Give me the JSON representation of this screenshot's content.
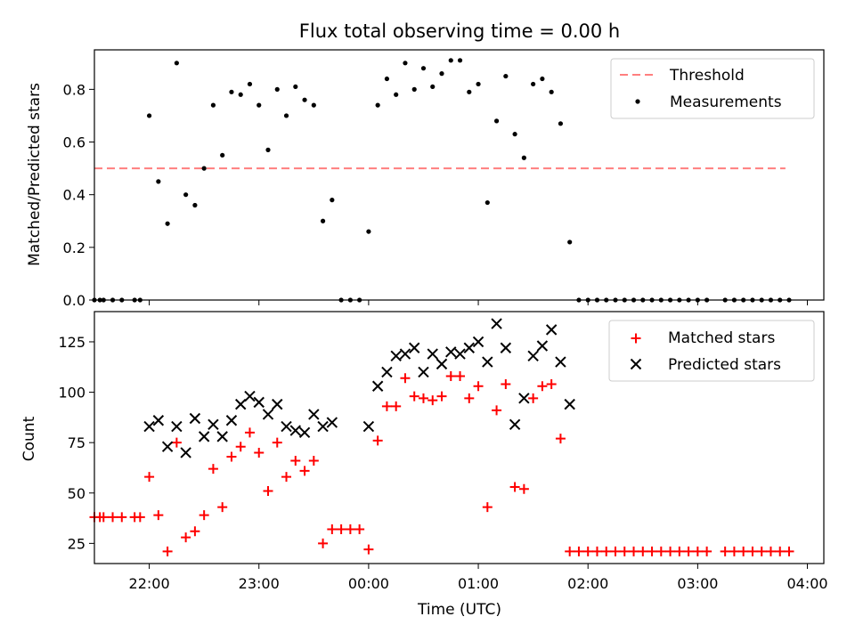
{
  "chart_data": [
    {
      "type": "scatter",
      "title": "Flux total observing time = 0.00 h",
      "xlabel": "",
      "ylabel": "Matched/Predicted stars",
      "xlim": [
        "21:30",
        "04:09"
      ],
      "ylim": [
        0,
        0.95
      ],
      "yticks": [
        0.0,
        0.2,
        0.4,
        0.6,
        0.8
      ],
      "yticklabels": [
        "0.0",
        "0.2",
        "0.4",
        "0.6",
        "0.8"
      ],
      "legend_position": "top-right",
      "threshold": {
        "name": "Threshold",
        "value": 0.5,
        "x_start": "21:30",
        "x_end": "03:48",
        "color": "#ff7f7f"
      },
      "series": [
        {
          "name": "Measurements",
          "color": "#000000",
          "marker": "dot",
          "points": [
            [
              "21:30",
              0
            ],
            [
              "21:33",
              0
            ],
            [
              "21:35",
              0
            ],
            [
              "21:40",
              0
            ],
            [
              "21:45",
              0
            ],
            [
              "21:52",
              0
            ],
            [
              "21:55",
              0
            ],
            [
              "22:00",
              0.7
            ],
            [
              "22:05",
              0.45
            ],
            [
              "22:10",
              0.29
            ],
            [
              "22:15",
              0.9
            ],
            [
              "22:20",
              0.4
            ],
            [
              "22:25",
              0.36
            ],
            [
              "22:30",
              0.5
            ],
            [
              "22:35",
              0.74
            ],
            [
              "22:40",
              0.55
            ],
            [
              "22:45",
              0.79
            ],
            [
              "22:50",
              0.78
            ],
            [
              "22:55",
              0.82
            ],
            [
              "23:00",
              0.74
            ],
            [
              "23:05",
              0.57
            ],
            [
              "23:10",
              0.8
            ],
            [
              "23:15",
              0.7
            ],
            [
              "23:20",
              0.81
            ],
            [
              "23:25",
              0.76
            ],
            [
              "23:30",
              0.74
            ],
            [
              "23:35",
              0.3
            ],
            [
              "23:40",
              0.38
            ],
            [
              "23:45",
              0
            ],
            [
              "23:50",
              0
            ],
            [
              "23:55",
              0
            ],
            [
              "00:00",
              0.26
            ],
            [
              "00:05",
              0.74
            ],
            [
              "00:10",
              0.84
            ],
            [
              "00:15",
              0.78
            ],
            [
              "00:20",
              0.9
            ],
            [
              "00:25",
              0.8
            ],
            [
              "00:30",
              0.88
            ],
            [
              "00:35",
              0.81
            ],
            [
              "00:40",
              0.86
            ],
            [
              "00:45",
              0.91
            ],
            [
              "00:50",
              0.91
            ],
            [
              "00:55",
              0.79
            ],
            [
              "01:00",
              0.82
            ],
            [
              "01:05",
              0.37
            ],
            [
              "01:10",
              0.68
            ],
            [
              "01:15",
              0.85
            ],
            [
              "01:20",
              0.63
            ],
            [
              "01:25",
              0.54
            ],
            [
              "01:30",
              0.82
            ],
            [
              "01:35",
              0.84
            ],
            [
              "01:40",
              0.79
            ],
            [
              "01:45",
              0.67
            ],
            [
              "01:50",
              0.22
            ],
            [
              "01:55",
              0
            ],
            [
              "02:00",
              0
            ],
            [
              "02:05",
              0
            ],
            [
              "02:10",
              0
            ],
            [
              "02:15",
              0
            ],
            [
              "02:20",
              0
            ],
            [
              "02:25",
              0
            ],
            [
              "02:30",
              0
            ],
            [
              "02:35",
              0
            ],
            [
              "02:40",
              0
            ],
            [
              "02:45",
              0
            ],
            [
              "02:50",
              0
            ],
            [
              "02:55",
              0
            ],
            [
              "03:00",
              0
            ],
            [
              "03:05",
              0
            ],
            [
              "03:15",
              0
            ],
            [
              "03:20",
              0
            ],
            [
              "03:25",
              0
            ],
            [
              "03:30",
              0
            ],
            [
              "03:35",
              0
            ],
            [
              "03:40",
              0
            ],
            [
              "03:45",
              0
            ],
            [
              "03:50",
              0
            ]
          ]
        }
      ]
    },
    {
      "type": "scatter",
      "title": "",
      "xlabel": "Time (UTC)",
      "ylabel": "Count",
      "xlim": [
        "21:30",
        "04:09"
      ],
      "ylim": [
        15,
        140
      ],
      "yticks": [
        25,
        50,
        75,
        100,
        125
      ],
      "yticklabels": [
        "25",
        "50",
        "75",
        "100",
        "125"
      ],
      "xticks": [
        "22:00",
        "23:00",
        "00:00",
        "01:00",
        "02:00",
        "03:00",
        "04:00"
      ],
      "xticklabels": [
        "22:00",
        "23:00",
        "00:00",
        "01:00",
        "02:00",
        "03:00",
        "04:00"
      ],
      "legend_position": "top-right",
      "series": [
        {
          "name": "Matched stars",
          "color": "#ff0000",
          "marker": "plus",
          "points": [
            [
              "21:30",
              38
            ],
            [
              "21:33",
              38
            ],
            [
              "21:35",
              38
            ],
            [
              "21:40",
              38
            ],
            [
              "21:45",
              38
            ],
            [
              "21:52",
              38
            ],
            [
              "21:55",
              38
            ],
            [
              "22:00",
              58
            ],
            [
              "22:05",
              39
            ],
            [
              "22:10",
              21
            ],
            [
              "22:15",
              75
            ],
            [
              "22:20",
              28
            ],
            [
              "22:25",
              31
            ],
            [
              "22:30",
              39
            ],
            [
              "22:35",
              62
            ],
            [
              "22:40",
              43
            ],
            [
              "22:45",
              68
            ],
            [
              "22:50",
              73
            ],
            [
              "22:55",
              80
            ],
            [
              "23:00",
              70
            ],
            [
              "23:05",
              51
            ],
            [
              "23:10",
              75
            ],
            [
              "23:15",
              58
            ],
            [
              "23:20",
              66
            ],
            [
              "23:25",
              61
            ],
            [
              "23:30",
              66
            ],
            [
              "23:35",
              25
            ],
            [
              "23:40",
              32
            ],
            [
              "23:45",
              32
            ],
            [
              "23:50",
              32
            ],
            [
              "23:55",
              32
            ],
            [
              "00:00",
              22
            ],
            [
              "00:05",
              76
            ],
            [
              "00:10",
              93
            ],
            [
              "00:15",
              93
            ],
            [
              "00:20",
              107
            ],
            [
              "00:25",
              98
            ],
            [
              "00:30",
              97
            ],
            [
              "00:35",
              96
            ],
            [
              "00:40",
              98
            ],
            [
              "00:45",
              108
            ],
            [
              "00:50",
              108
            ],
            [
              "00:55",
              97
            ],
            [
              "01:00",
              103
            ],
            [
              "01:05",
              43
            ],
            [
              "01:10",
              91
            ],
            [
              "01:15",
              104
            ],
            [
              "01:20",
              53
            ],
            [
              "01:25",
              52
            ],
            [
              "01:30",
              97
            ],
            [
              "01:35",
              103
            ],
            [
              "01:40",
              104
            ],
            [
              "01:45",
              77
            ],
            [
              "01:50",
              21
            ],
            [
              "01:55",
              21
            ],
            [
              "02:00",
              21
            ],
            [
              "02:05",
              21
            ],
            [
              "02:10",
              21
            ],
            [
              "02:15",
              21
            ],
            [
              "02:20",
              21
            ],
            [
              "02:25",
              21
            ],
            [
              "02:30",
              21
            ],
            [
              "02:35",
              21
            ],
            [
              "02:40",
              21
            ],
            [
              "02:45",
              21
            ],
            [
              "02:50",
              21
            ],
            [
              "02:55",
              21
            ],
            [
              "03:00",
              21
            ],
            [
              "03:05",
              21
            ],
            [
              "03:15",
              21
            ],
            [
              "03:20",
              21
            ],
            [
              "03:25",
              21
            ],
            [
              "03:30",
              21
            ],
            [
              "03:35",
              21
            ],
            [
              "03:40",
              21
            ],
            [
              "03:45",
              21
            ],
            [
              "03:50",
              21
            ]
          ]
        },
        {
          "name": "Predicted stars",
          "color": "#000000",
          "marker": "x",
          "points": [
            [
              "22:00",
              83
            ],
            [
              "22:05",
              86
            ],
            [
              "22:10",
              73
            ],
            [
              "22:15",
              83
            ],
            [
              "22:20",
              70
            ],
            [
              "22:25",
              87
            ],
            [
              "22:30",
              78
            ],
            [
              "22:35",
              84
            ],
            [
              "22:40",
              78
            ],
            [
              "22:45",
              86
            ],
            [
              "22:50",
              94
            ],
            [
              "22:55",
              98
            ],
            [
              "23:00",
              95
            ],
            [
              "23:05",
              89
            ],
            [
              "23:10",
              94
            ],
            [
              "23:15",
              83
            ],
            [
              "23:20",
              81
            ],
            [
              "23:25",
              80
            ],
            [
              "23:30",
              89
            ],
            [
              "23:35",
              83
            ],
            [
              "23:40",
              85
            ],
            [
              "00:00",
              83
            ],
            [
              "00:05",
              103
            ],
            [
              "00:10",
              110
            ],
            [
              "00:15",
              118
            ],
            [
              "00:20",
              119
            ],
            [
              "00:25",
              122
            ],
            [
              "00:30",
              110
            ],
            [
              "00:35",
              119
            ],
            [
              "00:40",
              114
            ],
            [
              "00:45",
              120
            ],
            [
              "00:50",
              119
            ],
            [
              "00:55",
              122
            ],
            [
              "01:00",
              125
            ],
            [
              "01:05",
              115
            ],
            [
              "01:10",
              134
            ],
            [
              "01:15",
              122
            ],
            [
              "01:20",
              84
            ],
            [
              "01:25",
              97
            ],
            [
              "01:30",
              118
            ],
            [
              "01:35",
              123
            ],
            [
              "01:40",
              131
            ],
            [
              "01:45",
              115
            ],
            [
              "01:50",
              94
            ]
          ]
        }
      ]
    }
  ]
}
